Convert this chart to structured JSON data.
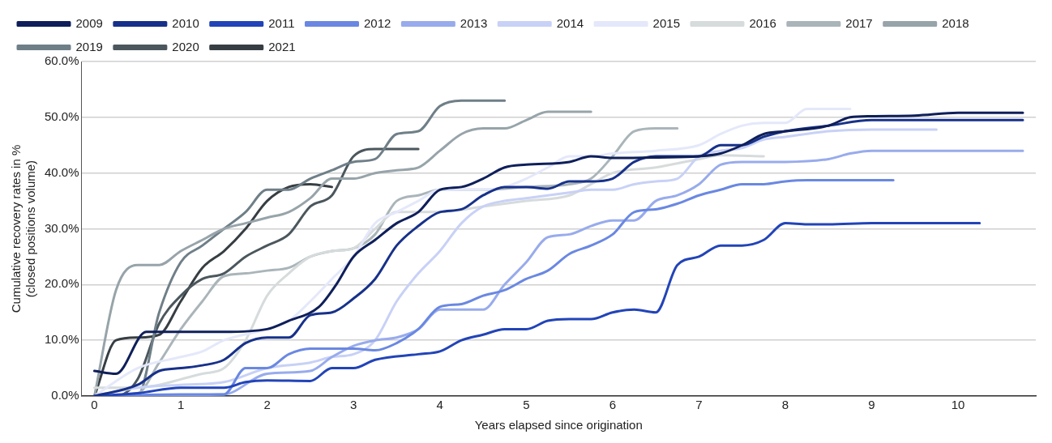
{
  "chart_data": {
    "type": "line",
    "xlabel": "Years elapsed since origination",
    "ylabel": "Cumulative recovery rates in %\n(closed positions volume)",
    "xlim": [
      -0.15,
      10.9
    ],
    "xticks": [
      0,
      1,
      2,
      3,
      4,
      5,
      6,
      7,
      8,
      9,
      10
    ],
    "ylim": [
      0,
      60
    ],
    "yticks": [
      {
        "value": 0,
        "label": "0.0%"
      },
      {
        "value": 10,
        "label": "10.0%"
      },
      {
        "value": 20,
        "label": "20.0%"
      },
      {
        "value": 30,
        "label": "30.0%"
      },
      {
        "value": 40,
        "label": "40.0%"
      },
      {
        "value": 50,
        "label": "50.0%"
      },
      {
        "value": 60,
        "label": "60.0%"
      }
    ],
    "grid": "y",
    "legend": "top",
    "line_style": "solid",
    "marker": "none",
    "series": [
      {
        "name": "2009",
        "color": "#0f1f5a",
        "x": [
          0,
          0.25,
          0.6,
          1,
          1.5,
          2,
          2.25,
          2.6,
          2.8,
          3,
          3.25,
          3.5,
          3.75,
          4,
          4.25,
          4.5,
          4.75,
          5,
          5.5,
          5.75,
          6,
          6.5,
          7,
          7.25,
          7.5,
          7.75,
          8,
          8.5,
          8.75,
          9,
          9.5,
          10,
          10.75
        ],
        "values": [
          4.5,
          4,
          11.5,
          11.5,
          11.5,
          12,
          13.5,
          16,
          20,
          25,
          28,
          31,
          33,
          37,
          37.5,
          39,
          41,
          41.5,
          42,
          43,
          42.7,
          42.8,
          43,
          43.5,
          45,
          47,
          47.5,
          48.5,
          50,
          50.2,
          50.3,
          50.8,
          50.8
        ]
      },
      {
        "name": "2010",
        "color": "#17318a",
        "x": [
          0,
          0.5,
          0.75,
          1,
          1.25,
          1.5,
          1.75,
          2,
          2.25,
          2.5,
          2.75,
          3,
          3.25,
          3.5,
          3.75,
          4,
          4.25,
          4.5,
          4.75,
          5,
          5.25,
          5.5,
          5.75,
          6,
          6.25,
          6.5,
          7,
          7.25,
          7.5,
          7.75,
          8,
          8.5,
          9,
          10.75
        ],
        "values": [
          0,
          2,
          4.5,
          5,
          5.5,
          6.5,
          9.5,
          10.5,
          10.5,
          14.5,
          15,
          17.5,
          21,
          27,
          30.5,
          33,
          33.5,
          36,
          37.5,
          37.5,
          37.2,
          38.5,
          38.5,
          39,
          42,
          43,
          43,
          45,
          45,
          46.5,
          47.5,
          48.5,
          49.5,
          49.5
        ]
      },
      {
        "name": "2011",
        "color": "#2244b8",
        "x": [
          0,
          0.5,
          1,
          1.5,
          1.75,
          2,
          2.5,
          2.75,
          3,
          3.25,
          3.75,
          4,
          4.25,
          4.5,
          4.75,
          5,
          5.25,
          5.5,
          5.75,
          6,
          6.25,
          6.5,
          6.75,
          7,
          7.25,
          7.5,
          7.75,
          8,
          8.25,
          8.5,
          9,
          10.25
        ],
        "values": [
          0,
          0.5,
          1.5,
          1.5,
          2.5,
          2.8,
          2.7,
          5,
          5,
          6.5,
          7.5,
          8,
          10,
          11,
          12,
          12,
          13.5,
          13.8,
          13.8,
          15,
          15.5,
          15,
          23.5,
          25,
          27,
          27,
          28,
          31,
          30.8,
          30.8,
          31,
          31
        ]
      },
      {
        "name": "2012",
        "color": "#6a88e2",
        "x": [
          0,
          1,
          1.5,
          1.75,
          2,
          2.25,
          2.5,
          3,
          3.25,
          3.5,
          3.75,
          4,
          4.25,
          4.5,
          4.75,
          5,
          5.25,
          5.5,
          5.75,
          6,
          6.25,
          6.5,
          6.75,
          7,
          7.25,
          7.5,
          7.75,
          8,
          8.25,
          9.25
        ],
        "values": [
          0,
          0.3,
          0.3,
          5,
          5,
          7.5,
          8.5,
          8.5,
          8.2,
          9.5,
          12,
          16,
          16.5,
          18,
          19,
          21,
          22.5,
          25.5,
          27,
          29,
          33,
          33.5,
          34.5,
          36,
          37,
          38,
          38,
          38.5,
          38.7,
          38.7
        ]
      },
      {
        "name": "2013",
        "color": "#98abec",
        "x": [
          0,
          1.5,
          2,
          2.5,
          2.75,
          3,
          3.25,
          3.5,
          3.75,
          4,
          4.5,
          4.75,
          5,
          5.25,
          5.5,
          5.75,
          6,
          6.25,
          6.5,
          6.75,
          7,
          7.25,
          7.5,
          8,
          8.5,
          8.75,
          9,
          10.75
        ],
        "values": [
          0,
          0.3,
          4,
          4.5,
          7,
          9,
          10,
          10.5,
          12,
          15.5,
          15.5,
          20,
          24,
          28.5,
          29,
          30.5,
          31.5,
          31.5,
          35,
          36,
          38,
          41.5,
          42,
          42,
          42.5,
          43.5,
          44,
          44
        ]
      },
      {
        "name": "2014",
        "color": "#c8d1f6",
        "x": [
          0,
          0.5,
          1,
          1.5,
          2,
          2.5,
          2.75,
          3,
          3.25,
          3.5,
          3.75,
          4,
          4.25,
          4.5,
          4.75,
          5,
          5.5,
          5.75,
          6,
          6.25,
          6.5,
          6.75,
          7,
          7.25,
          7.5,
          7.75,
          8,
          8.5,
          9,
          9.75
        ],
        "values": [
          0,
          1.5,
          2,
          2.5,
          5,
          6,
          7,
          7.5,
          10,
          17,
          22,
          26,
          31,
          34,
          35,
          35.5,
          36.5,
          37,
          37,
          38,
          38.5,
          39,
          43,
          44,
          44.5,
          46,
          46.5,
          47.5,
          47.8,
          47.8
        ]
      },
      {
        "name": "2015",
        "color": "#e4e8fa",
        "x": [
          0,
          0.5,
          1,
          1.25,
          1.5,
          2,
          2.25,
          2.5,
          2.75,
          3,
          3.25,
          3.5,
          3.75,
          4,
          4.5,
          4.75,
          5,
          5.25,
          5.5,
          5.75,
          6,
          6.5,
          7,
          7.25,
          7.5,
          7.75,
          8,
          8.25,
          8.75
        ],
        "values": [
          0,
          5,
          7,
          8,
          10,
          12,
          13.5,
          17,
          21,
          25,
          31,
          33,
          35,
          37,
          37,
          37.5,
          39,
          41,
          43,
          43,
          43.5,
          44,
          45,
          47,
          48.5,
          49,
          49,
          51.5,
          51.5
        ]
      },
      {
        "name": "2016",
        "color": "#d6dbdc",
        "x": [
          0,
          0.5,
          0.75,
          1,
          1.25,
          1.5,
          1.75,
          2,
          2.25,
          2.5,
          2.75,
          3,
          3.25,
          3.5,
          3.75,
          4,
          4.5,
          5,
          5.5,
          5.75,
          6,
          6.5,
          7,
          7.25,
          7.75
        ],
        "values": [
          1.5,
          1.5,
          2,
          3,
          4,
          5,
          10,
          18,
          22,
          25,
          26,
          26.5,
          30,
          33,
          33,
          33,
          34,
          35,
          36,
          38,
          40,
          41,
          42.5,
          43.2,
          43
        ]
      },
      {
        "name": "2017",
        "color": "#aab5ba",
        "x": [
          0,
          0.5,
          0.75,
          1,
          1.25,
          1.5,
          1.75,
          2,
          2.25,
          2.5,
          2.75,
          3,
          3.25,
          3.5,
          3.75,
          4,
          4.5,
          5,
          5.5,
          5.75,
          6,
          6.25,
          6.5,
          6.75
        ],
        "values": [
          0,
          0.5,
          6,
          12,
          17,
          21.5,
          22,
          22.5,
          23,
          25,
          26,
          26.5,
          29,
          35,
          36,
          37,
          37,
          37.5,
          38,
          39,
          43,
          47.5,
          48,
          48
        ]
      },
      {
        "name": "2018",
        "color": "#97a4aa",
        "x": [
          0,
          0.25,
          0.5,
          0.75,
          1,
          1.25,
          1.5,
          1.75,
          2,
          2.25,
          2.5,
          2.75,
          3,
          3.25,
          3.5,
          3.75,
          4,
          4.25,
          4.5,
          4.75,
          5,
          5.25,
          5.75
        ],
        "values": [
          0,
          19,
          23.5,
          23.5,
          26,
          28,
          30,
          31,
          32,
          33,
          35.5,
          39,
          39,
          40,
          40.5,
          41,
          44,
          47,
          48,
          48,
          49.5,
          51,
          51
        ]
      },
      {
        "name": "2019",
        "color": "#6f7f88",
        "x": [
          0,
          0.5,
          0.75,
          1,
          1.25,
          1.5,
          1.75,
          2,
          2.25,
          2.5,
          2.75,
          3,
          3.25,
          3.5,
          3.75,
          4,
          4.25,
          4.75
        ],
        "values": [
          0,
          0,
          15,
          24,
          27,
          30,
          33,
          37,
          37,
          39,
          40.5,
          42,
          42.5,
          47,
          47.5,
          52,
          53,
          53
        ]
      },
      {
        "name": "2020",
        "color": "#4b575d",
        "x": [
          0,
          0.25,
          0.5,
          0.75,
          1,
          1.25,
          1.5,
          1.75,
          2,
          2.25,
          2.5,
          2.75,
          3,
          3.25,
          3.75
        ],
        "values": [
          0,
          0,
          3,
          13,
          18,
          21,
          22,
          25,
          27,
          29,
          34,
          36,
          43,
          44.3,
          44.3
        ]
      },
      {
        "name": "2021",
        "color": "#373e43",
        "x": [
          0,
          0.25,
          0.5,
          0.75,
          1,
          1.25,
          1.5,
          1.75,
          2,
          2.25,
          2.5,
          2.75
        ],
        "values": [
          0,
          10,
          10.5,
          11,
          17,
          23,
          26,
          30,
          35,
          37.5,
          38,
          37.5
        ]
      }
    ]
  }
}
